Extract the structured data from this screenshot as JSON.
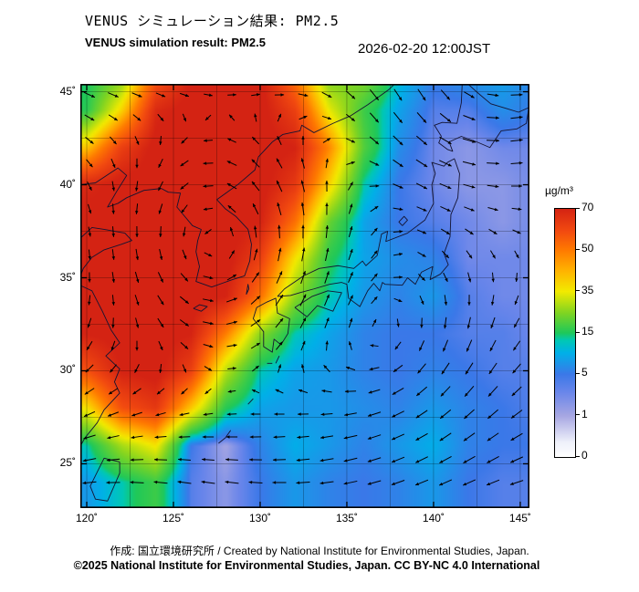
{
  "header": {
    "title_jp": "VENUS シミュレーション結果: PM2.5",
    "title_en": "VENUS simulation result: PM2.5",
    "datetime": "2026-02-20 12:00JST"
  },
  "footer": {
    "credit": "作成: 国立環境研究所 / Created by National Institute for Environmental Studies, Japan.",
    "copyright": "©2025 National Institute for Environmental Studies, Japan. CC BY-NC 4.0 International"
  },
  "colorbar": {
    "unit": "µg/m³",
    "tick_labels": [
      "0",
      "1",
      "5",
      "15",
      "35",
      "50",
      "70"
    ]
  },
  "chart_data": {
    "type": "heatmap",
    "title": "VENUS simulation result: PM2.5",
    "variable": "PM2.5 concentration",
    "unit": "µg/m³",
    "valid_time": "2026-02-20 12:00JST",
    "lon_range": [
      119.63,
      145.53
    ],
    "lat_range": [
      22.62,
      45.42
    ],
    "graticule_step": 2.5,
    "lon_axis": {
      "tick_values": [
        120,
        125,
        130,
        135,
        140,
        145
      ],
      "tick_labels": [
        "120˚",
        "125˚",
        "130˚",
        "135˚",
        "140˚",
        "145˚"
      ]
    },
    "lat_axis": {
      "tick_values": [
        25,
        30,
        35,
        40,
        45
      ],
      "tick_labels": [
        "25˚",
        "30˚",
        "35˚",
        "40˚",
        "45˚"
      ]
    },
    "color_scale": {
      "tick_values": [
        0,
        1,
        5,
        15,
        35,
        50,
        70
      ],
      "stops": [
        {
          "t": 0.0,
          "c": "#ffffff"
        },
        {
          "t": 0.06,
          "c": "#eef0fa"
        },
        {
          "t": 0.167,
          "c": "#a6a6e2"
        },
        {
          "t": 0.26,
          "c": "#6a86ea"
        },
        {
          "t": 0.333,
          "c": "#3b78e8"
        },
        {
          "t": 0.42,
          "c": "#00b0e8"
        },
        {
          "t": 0.47,
          "c": "#00c8b4"
        },
        {
          "t": 0.5,
          "c": "#1ec85a"
        },
        {
          "t": 0.58,
          "c": "#7fd422"
        },
        {
          "t": 0.667,
          "c": "#f2ea00"
        },
        {
          "t": 0.75,
          "c": "#ffb300"
        },
        {
          "t": 0.833,
          "c": "#ff7a00"
        },
        {
          "t": 0.91,
          "c": "#f24a10"
        },
        {
          "t": 1.0,
          "c": "#d42313"
        }
      ]
    },
    "pm25_grid": {
      "comment": "estimated concentrations (µg/m³) read from the colour field, rows north→south",
      "lons": [
        120,
        122,
        124,
        126,
        128,
        130,
        132,
        134,
        136,
        138,
        140,
        142,
        144,
        146
      ],
      "lats": [
        46,
        44,
        42,
        40,
        38,
        36,
        34,
        32,
        30,
        28,
        26,
        24
      ],
      "values": [
        [
          14,
          22,
          55,
          70,
          72,
          72,
          50,
          22,
          26,
          12,
          6,
          8,
          9,
          6
        ],
        [
          16,
          38,
          68,
          72,
          72,
          72,
          62,
          34,
          18,
          9,
          4,
          4,
          7,
          5
        ],
        [
          40,
          62,
          72,
          72,
          72,
          72,
          70,
          48,
          20,
          7,
          3,
          2,
          3,
          3
        ],
        [
          68,
          72,
          72,
          72,
          72,
          72,
          64,
          38,
          13,
          5,
          3,
          2,
          2,
          3
        ],
        [
          72,
          72,
          72,
          72,
          72,
          70,
          52,
          22,
          9,
          5,
          4,
          3,
          2,
          3
        ],
        [
          72,
          72,
          72,
          72,
          72,
          62,
          36,
          16,
          9,
          7,
          6,
          3,
          3,
          3
        ],
        [
          72,
          72,
          72,
          72,
          70,
          52,
          26,
          13,
          8,
          6,
          8,
          4,
          3,
          3
        ],
        [
          70,
          72,
          72,
          70,
          50,
          26,
          13,
          9,
          6,
          5,
          5,
          4,
          4,
          3
        ],
        [
          58,
          70,
          72,
          62,
          30,
          13,
          9,
          8,
          6,
          5,
          6,
          5,
          4,
          4
        ],
        [
          36,
          58,
          64,
          40,
          16,
          9,
          8,
          8,
          7,
          6,
          8,
          6,
          5,
          4
        ],
        [
          13,
          28,
          36,
          5,
          1,
          6,
          10,
          8,
          6,
          8,
          10,
          6,
          5,
          5
        ],
        [
          8,
          13,
          18,
          4,
          2,
          5,
          8,
          6,
          5,
          6,
          8,
          5,
          4,
          4
        ]
      ]
    },
    "wind_field": {
      "comment": "approximation of the plotted wind-vector pattern",
      "vortices": [
        {
          "lon": 128.3,
          "lat": 36.8,
          "strength": 1.15,
          "radius": 4.5
        },
        {
          "lon": 141.3,
          "lat": 44.3,
          "strength": 0.85,
          "radius": 3.2
        },
        {
          "lon": 138.5,
          "lat": 30.5,
          "strength": -0.5,
          "radius": 3.5
        }
      ],
      "background": {
        "u_at_lat23": -4.0,
        "u_at_lat46": 3.0
      }
    },
    "coastlines": [
      [
        [
          124.3,
          39.8
        ],
        [
          124.7,
          39.6
        ],
        [
          125.4,
          39.55
        ],
        [
          125.2,
          38.8
        ],
        [
          126.1,
          37.8
        ],
        [
          126.6,
          37.6
        ],
        [
          126.4,
          37.0
        ],
        [
          126.3,
          36.4
        ],
        [
          126.5,
          35.6
        ],
        [
          126.3,
          34.8
        ],
        [
          127.2,
          34.5
        ],
        [
          127.8,
          34.7
        ],
        [
          128.4,
          34.9
        ],
        [
          129.1,
          35.1
        ],
        [
          129.4,
          35.9
        ],
        [
          129.5,
          36.8
        ],
        [
          129.3,
          37.6
        ],
        [
          128.6,
          38.3
        ],
        [
          128.0,
          38.7
        ],
        [
          127.5,
          39.2
        ],
        [
          128.7,
          40.0
        ],
        [
          129.7,
          40.8
        ],
        [
          129.9,
          41.5
        ],
        [
          130.7,
          42.3
        ]
      ],
      [
        [
          130.7,
          42.3
        ],
        [
          131.3,
          42.7
        ],
        [
          132.3,
          42.9
        ],
        [
          132.4,
          43.2
        ],
        [
          133.1,
          42.8
        ],
        [
          134.2,
          43.3
        ],
        [
          135.2,
          43.7
        ],
        [
          136.2,
          44.3
        ],
        [
          137.4,
          45.1
        ],
        [
          138.3,
          45.9
        ],
        [
          138.6,
          46.3
        ]
      ],
      [
        [
          119.6,
          40.0
        ],
        [
          120.5,
          40.1
        ],
        [
          121.8,
          40.9
        ],
        [
          122.3,
          40.5
        ],
        [
          121.7,
          39.6
        ],
        [
          121.2,
          38.8
        ],
        [
          121.8,
          39.0
        ],
        [
          122.3,
          39.3
        ],
        [
          123.3,
          39.7
        ],
        [
          124.3,
          39.8
        ]
      ],
      [
        [
          119.6,
          37.1
        ],
        [
          120.3,
          37.7
        ],
        [
          121.0,
          37.6
        ],
        [
          122.2,
          37.4
        ],
        [
          122.6,
          37.0
        ],
        [
          122.0,
          36.8
        ],
        [
          121.0,
          36.5
        ],
        [
          120.3,
          36.1
        ],
        [
          119.8,
          35.5
        ],
        [
          119.6,
          35.0
        ]
      ],
      [
        [
          119.6,
          34.6
        ],
        [
          120.3,
          34.3
        ],
        [
          120.9,
          33.2
        ],
        [
          121.4,
          32.2
        ],
        [
          121.9,
          31.5
        ],
        [
          121.1,
          30.8
        ],
        [
          121.9,
          30.1
        ],
        [
          121.6,
          29.4
        ],
        [
          121.9,
          28.8
        ],
        [
          121.0,
          27.9
        ],
        [
          120.6,
          27.2
        ],
        [
          119.9,
          26.4
        ],
        [
          119.6,
          25.9
        ]
      ],
      [
        [
          121.9,
          25.1
        ],
        [
          121.0,
          25.3
        ],
        [
          120.2,
          23.8
        ],
        [
          120.5,
          23.1
        ],
        [
          121.2,
          23.0
        ],
        [
          121.9,
          24.5
        ],
        [
          121.9,
          25.1
        ]
      ],
      [
        [
          130.4,
          33.7
        ],
        [
          129.8,
          33.4
        ],
        [
          129.6,
          32.8
        ],
        [
          130.2,
          32.1
        ],
        [
          130.2,
          31.3
        ],
        [
          130.7,
          31.0
        ],
        [
          130.8,
          31.7
        ],
        [
          131.2,
          31.4
        ],
        [
          131.6,
          32.0
        ],
        [
          131.7,
          32.8
        ],
        [
          131.0,
          33.1
        ],
        [
          130.9,
          33.9
        ],
        [
          130.4,
          33.7
        ]
      ],
      [
        [
          132.0,
          33.4
        ],
        [
          132.7,
          32.9
        ],
        [
          133.3,
          33.5
        ],
        [
          134.2,
          33.2
        ],
        [
          134.7,
          34.2
        ],
        [
          133.9,
          34.3
        ],
        [
          133.0,
          34.0
        ],
        [
          132.0,
          33.4
        ]
      ],
      [
        [
          131.0,
          34.0
        ],
        [
          131.4,
          34.4
        ],
        [
          132.5,
          35.1
        ],
        [
          133.4,
          35.5
        ],
        [
          134.5,
          35.65
        ],
        [
          135.4,
          35.5
        ],
        [
          135.9,
          35.9
        ],
        [
          136.1,
          35.65
        ],
        [
          136.75,
          36.2
        ],
        [
          137.0,
          37.35
        ],
        [
          137.35,
          37.5
        ],
        [
          137.25,
          36.95
        ],
        [
          138.5,
          37.4
        ],
        [
          139.5,
          38.1
        ],
        [
          140.0,
          39.0
        ],
        [
          139.9,
          40.0
        ],
        [
          140.1,
          40.6
        ],
        [
          139.9,
          41.2
        ],
        [
          140.6,
          41.0
        ],
        [
          140.8,
          41.2
        ],
        [
          141.2,
          41.4
        ],
        [
          141.5,
          40.6
        ],
        [
          141.4,
          39.3
        ],
        [
          141.0,
          38.4
        ],
        [
          140.95,
          37.2
        ],
        [
          140.6,
          36.3
        ],
        [
          140.85,
          35.7
        ],
        [
          140.4,
          35.2
        ],
        [
          139.8,
          34.9
        ],
        [
          139.95,
          35.6
        ],
        [
          139.3,
          35.3
        ],
        [
          138.95,
          34.65
        ],
        [
          138.5,
          35.0
        ],
        [
          138.2,
          34.6
        ],
        [
          137.2,
          34.65
        ],
        [
          137.05,
          34.75
        ],
        [
          136.9,
          34.3
        ],
        [
          136.55,
          34.7
        ],
        [
          136.2,
          34.3
        ],
        [
          135.75,
          33.45
        ],
        [
          135.1,
          33.9
        ],
        [
          135.0,
          34.65
        ],
        [
          134.7,
          34.75
        ],
        [
          134.0,
          34.65
        ],
        [
          133.1,
          34.4
        ],
        [
          132.3,
          34.2
        ],
        [
          131.75,
          34.05
        ],
        [
          131.0,
          34.0
        ]
      ],
      [
        [
          140.45,
          42.6
        ],
        [
          140.3,
          42.25
        ],
        [
          140.8,
          41.9
        ],
        [
          141.1,
          41.8
        ],
        [
          140.9,
          42.3
        ],
        [
          141.6,
          42.6
        ],
        [
          142.5,
          42.3
        ],
        [
          143.25,
          42.0
        ],
        [
          143.9,
          42.9
        ],
        [
          144.8,
          43.0
        ],
        [
          145.35,
          43.3
        ],
        [
          145.5,
          44.15
        ],
        [
          144.9,
          43.9
        ],
        [
          144.2,
          44.1
        ],
        [
          143.3,
          44.35
        ],
        [
          142.6,
          44.9
        ],
        [
          142.0,
          45.4
        ],
        [
          141.65,
          45.4
        ],
        [
          141.6,
          44.4
        ],
        [
          141.35,
          43.3
        ],
        [
          140.5,
          43.35
        ],
        [
          140.05,
          43.2
        ],
        [
          140.45,
          42.6
        ]
      ],
      [
        [
          141.85,
          45.42
        ],
        [
          142.0,
          46.0
        ]
      ],
      [
        [
          145.45,
          43.65
        ],
        [
          146.0,
          44.2
        ]
      ],
      [
        [
          126.15,
          33.35
        ],
        [
          126.6,
          33.2
        ],
        [
          126.95,
          33.45
        ],
        [
          126.5,
          33.55
        ],
        [
          126.15,
          33.35
        ]
      ],
      [
        [
          129.2,
          34.1
        ],
        [
          129.35,
          34.4
        ],
        [
          129.3,
          34.65
        ],
        [
          129.2,
          34.1
        ]
      ],
      [
        [
          138.2,
          37.8
        ],
        [
          138.5,
          38.1
        ],
        [
          138.3,
          38.3
        ],
        [
          138.0,
          38.0
        ],
        [
          138.2,
          37.8
        ]
      ],
      [
        [
          127.6,
          26.1
        ],
        [
          128.0,
          26.4
        ],
        [
          128.3,
          26.8
        ]
      ],
      [
        [
          129.3,
          28.2
        ],
        [
          129.6,
          28.5
        ]
      ],
      [
        [
          130.4,
          30.4
        ],
        [
          130.7,
          30.4
        ]
      ],
      [
        [
          130.9,
          30.4
        ],
        [
          131.1,
          30.8
        ]
      ]
    ]
  }
}
